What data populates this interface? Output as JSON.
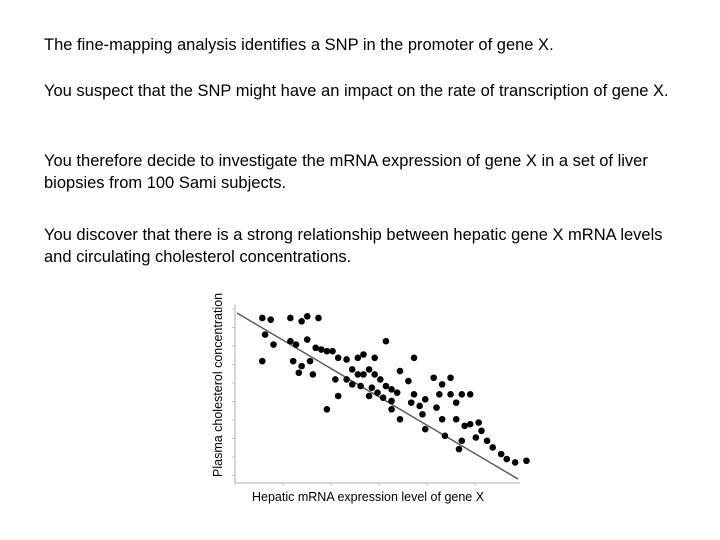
{
  "text": {
    "p1": "The fine-mapping analysis identifies a SNP in the promoter of gene X.",
    "p2": "You suspect that the SNP might have an impact on the rate of transcription of gene X.",
    "p3": "You therefore decide to investigate the mRNA expression of gene X in a set of liver biopsies from 100 Sami subjects.",
    "p4": "You discover that there is a strong relationship between hepatic gene X mRNA levels and circulating cholesterol concentrations."
  },
  "chart_data": {
    "type": "scatter",
    "xlabel": "Hepatic mRNA expression level of gene X",
    "ylabel": "Plasma cholesterol concentration",
    "xlim": [
      0,
      100
    ],
    "ylim": [
      0,
      100
    ],
    "grid": false,
    "trendline": {
      "x": [
        0,
        100
      ],
      "y": [
        100,
        0
      ]
    },
    "points": [
      {
        "x": 9,
        "y": 97
      },
      {
        "x": 12,
        "y": 96
      },
      {
        "x": 19,
        "y": 97
      },
      {
        "x": 23,
        "y": 95
      },
      {
        "x": 25,
        "y": 98
      },
      {
        "x": 29,
        "y": 97
      },
      {
        "x": 10,
        "y": 87
      },
      {
        "x": 13,
        "y": 81
      },
      {
        "x": 19,
        "y": 83
      },
      {
        "x": 21,
        "y": 81
      },
      {
        "x": 25,
        "y": 84
      },
      {
        "x": 28,
        "y": 79
      },
      {
        "x": 30,
        "y": 78
      },
      {
        "x": 32,
        "y": 77
      },
      {
        "x": 34,
        "y": 77
      },
      {
        "x": 36,
        "y": 73
      },
      {
        "x": 39,
        "y": 72
      },
      {
        "x": 9,
        "y": 71
      },
      {
        "x": 20,
        "y": 71
      },
      {
        "x": 23,
        "y": 68
      },
      {
        "x": 26,
        "y": 71
      },
      {
        "x": 22,
        "y": 64
      },
      {
        "x": 27,
        "y": 63
      },
      {
        "x": 35,
        "y": 60
      },
      {
        "x": 36,
        "y": 50
      },
      {
        "x": 39,
        "y": 60
      },
      {
        "x": 41,
        "y": 66
      },
      {
        "x": 43,
        "y": 63
      },
      {
        "x": 45,
        "y": 63
      },
      {
        "x": 47,
        "y": 66
      },
      {
        "x": 49,
        "y": 63
      },
      {
        "x": 51,
        "y": 60
      },
      {
        "x": 48,
        "y": 55
      },
      {
        "x": 44,
        "y": 56
      },
      {
        "x": 41,
        "y": 57
      },
      {
        "x": 53,
        "y": 56
      },
      {
        "x": 55,
        "y": 54
      },
      {
        "x": 57,
        "y": 52
      },
      {
        "x": 55,
        "y": 47
      },
      {
        "x": 52,
        "y": 49
      },
      {
        "x": 50,
        "y": 52
      },
      {
        "x": 47,
        "y": 50
      },
      {
        "x": 58,
        "y": 65
      },
      {
        "x": 61,
        "y": 59
      },
      {
        "x": 63,
        "y": 51
      },
      {
        "x": 62,
        "y": 46
      },
      {
        "x": 65,
        "y": 44
      },
      {
        "x": 67,
        "y": 48
      },
      {
        "x": 66,
        "y": 39
      },
      {
        "x": 58,
        "y": 36
      },
      {
        "x": 53,
        "y": 83
      },
      {
        "x": 63,
        "y": 73
      },
      {
        "x": 49,
        "y": 73
      },
      {
        "x": 45,
        "y": 75
      },
      {
        "x": 43,
        "y": 73
      },
      {
        "x": 70,
        "y": 61
      },
      {
        "x": 73,
        "y": 57
      },
      {
        "x": 76,
        "y": 61
      },
      {
        "x": 72,
        "y": 51
      },
      {
        "x": 76,
        "y": 51
      },
      {
        "x": 78,
        "y": 46
      },
      {
        "x": 80,
        "y": 51
      },
      {
        "x": 83,
        "y": 51
      },
      {
        "x": 71,
        "y": 43
      },
      {
        "x": 73,
        "y": 36
      },
      {
        "x": 74,
        "y": 26
      },
      {
        "x": 67,
        "y": 30
      },
      {
        "x": 78,
        "y": 36
      },
      {
        "x": 81,
        "y": 32
      },
      {
        "x": 83,
        "y": 33
      },
      {
        "x": 86,
        "y": 34
      },
      {
        "x": 87,
        "y": 29
      },
      {
        "x": 85,
        "y": 25
      },
      {
        "x": 89,
        "y": 23
      },
      {
        "x": 91,
        "y": 19
      },
      {
        "x": 94,
        "y": 15
      },
      {
        "x": 96,
        "y": 12
      },
      {
        "x": 99,
        "y": 10
      },
      {
        "x": 103,
        "y": 11
      },
      {
        "x": 79,
        "y": 18
      },
      {
        "x": 80,
        "y": 23
      },
      {
        "x": 32,
        "y": 42
      },
      {
        "x": 55,
        "y": 42
      }
    ]
  }
}
